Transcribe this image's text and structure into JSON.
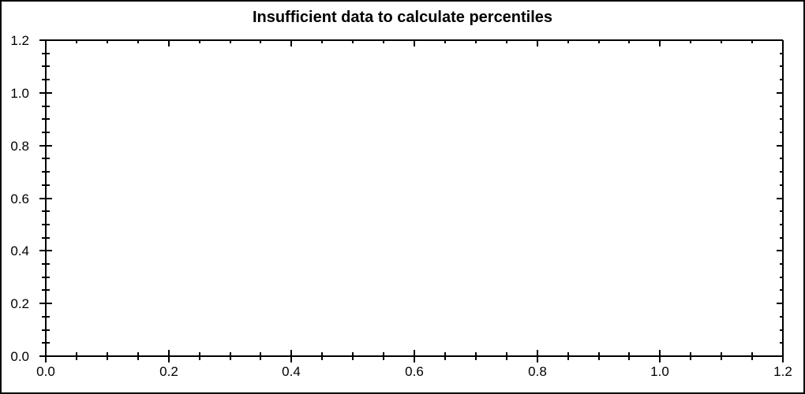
{
  "window": {
    "background": "#ffffff",
    "border_color": "#000000"
  },
  "chart_data": {
    "type": "scatter",
    "title": "Insufficient data to calculate percentiles",
    "series": [],
    "points": [],
    "xlabel": "",
    "ylabel": "",
    "xlim": [
      0.0,
      1.2
    ],
    "ylim": [
      0.0,
      1.2
    ],
    "x_major_ticks": [
      0.0,
      0.2,
      0.4,
      0.6,
      0.8,
      1.0,
      1.2
    ],
    "y_major_ticks": [
      0.0,
      0.2,
      0.4,
      0.6,
      0.8,
      1.0,
      1.2
    ],
    "x_tick_labels": [
      "0.0",
      "0.2",
      "0.4",
      "0.6",
      "0.8",
      "1.0",
      "1.2"
    ],
    "y_tick_labels": [
      "0.0",
      "0.2",
      "0.4",
      "0.6",
      "0.8",
      "1.0",
      "1.2"
    ],
    "minor_tick_step": 0.05,
    "grid": false,
    "legend": false,
    "frame": "box",
    "axis_color": "#000000",
    "text_color": "#000000"
  }
}
